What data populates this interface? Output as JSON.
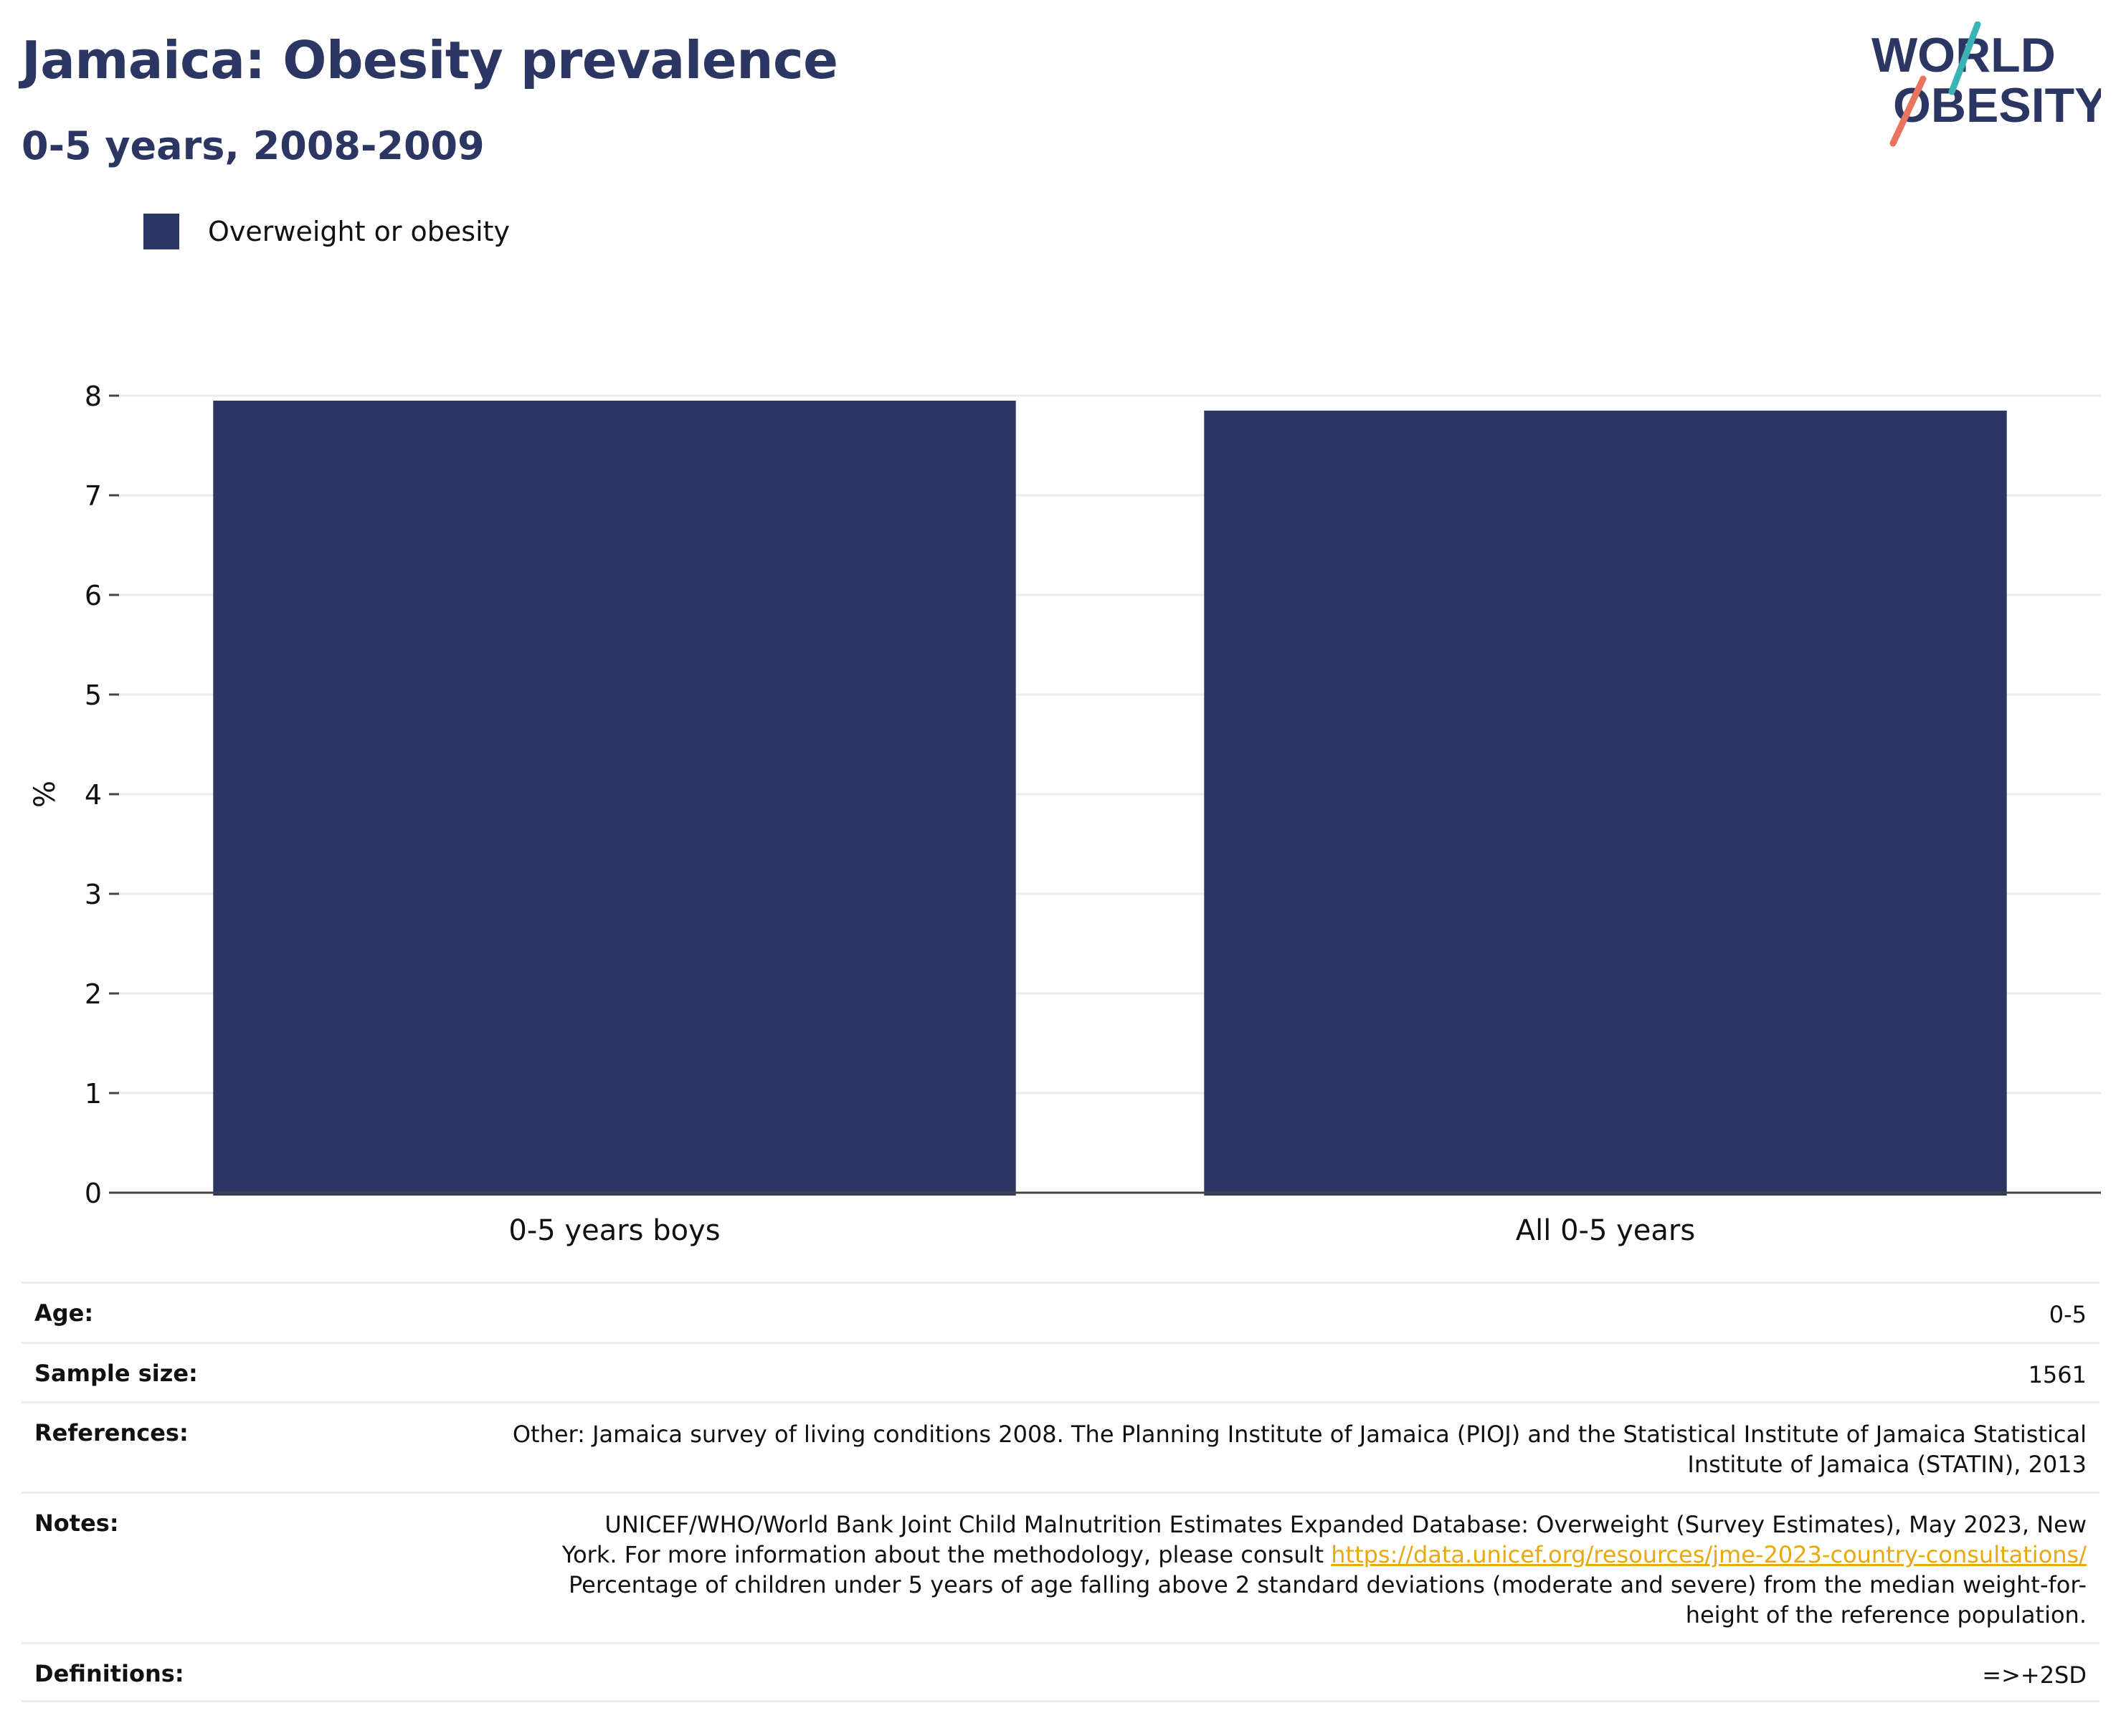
{
  "title": "Jamaica: Obesity prevalence",
  "subtitle": "0-5 years, 2008-2009",
  "logo": {
    "line1": "WORLD",
    "line2": "OBESITY",
    "text": "WORLD OBESITY"
  },
  "colors": {
    "bar": "#2b3662",
    "title": "#2b3662",
    "link": "#e8a90c",
    "grid": "#ececec",
    "logo_teal": "#3bb3b5",
    "logo_coral": "#e8735e"
  },
  "chart_data": {
    "type": "bar",
    "categories": [
      "0-5 years boys",
      "All 0-5 years"
    ],
    "series": [
      {
        "name": "Overweight or obesity",
        "values": [
          7.95,
          7.85
        ]
      }
    ],
    "ylabel": "%",
    "xlabel": "",
    "ylim": [
      0,
      8
    ],
    "yticks": [
      0,
      1,
      2,
      3,
      4,
      5,
      6,
      7,
      8
    ],
    "grid": true,
    "legend": "top-left"
  },
  "info": {
    "age": {
      "label": "Age:",
      "value": "0-5"
    },
    "sample_size": {
      "label": "Sample size:",
      "value": "1561"
    },
    "references": {
      "label": "References:",
      "line1": "Other: Jamaica survey of living conditions 2008. The Planning Institute of Jamaica (PIOJ) and the Statistical Institute of Jamaica Statistical",
      "line2": "Institute of Jamaica (STATIN), 2013"
    },
    "notes": {
      "label": "Notes:",
      "line1": "UNICEF/WHO/World Bank Joint Child Malnutrition Estimates Expanded Database: Overweight (Survey Estimates), May 2023, New",
      "line2_text": "York. For more information about the methodology, please consult",
      "link": "https://data.unicef.org/resources/jme-2023-country-consultations/",
      "line3": "Percentage of children under 5 years of age falling above 2 standard deviations (moderate and severe) from the median weight-for-",
      "line4": "height of the reference population."
    },
    "definitions": {
      "label": "Definitions:",
      "value": "=>+2SD"
    }
  }
}
